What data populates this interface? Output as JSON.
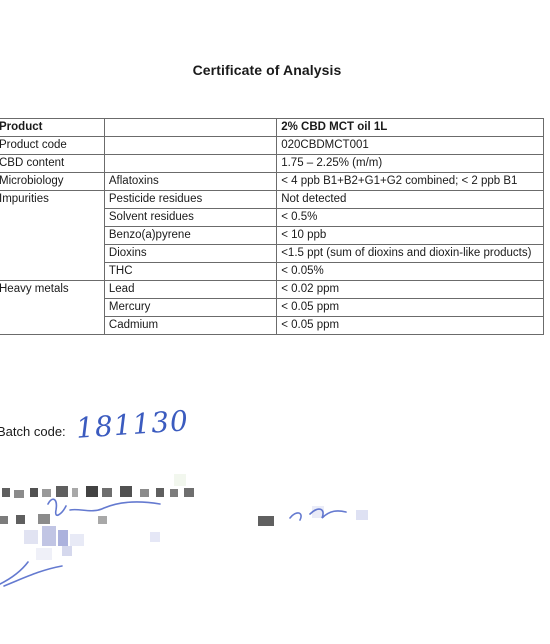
{
  "document": {
    "title": "Certificate of Analysis"
  },
  "table": {
    "rows": [
      {
        "c1": "Product",
        "c2": "",
        "c3": "2% CBD MCT oil 1L"
      },
      {
        "c1": "Product code",
        "c2": "",
        "c3": "020CBDMCT001"
      },
      {
        "c1": "CBD content",
        "c2": "",
        "c3": "1.75 – 2.25% (m/m)"
      },
      {
        "c1": "Microbiology",
        "c2": "Aflatoxins",
        "c3": "< 4 ppb B1+B2+G1+G2 combined; < 2 ppb B1"
      },
      {
        "c1": "Impurities",
        "c2": "Pesticide residues",
        "c3": "Not detected"
      },
      {
        "c1": "",
        "c2": "Solvent residues",
        "c3": "< 0.5%"
      },
      {
        "c1": "",
        "c2": "Benzo(a)pyrene",
        "c3": "< 10 ppb"
      },
      {
        "c1": "",
        "c2": "Dioxins",
        "c3": "<1.5 ppt (sum of dioxins and dioxin-like products)"
      },
      {
        "c1": "",
        "c2": "THC",
        "c3": "< 0.05%"
      },
      {
        "c1": "Heavy metals",
        "c2": "Lead",
        "c3": "< 0.02 ppm"
      },
      {
        "c1": "",
        "c2": "Mercury",
        "c3": "< 0.05 ppm"
      },
      {
        "c1": "",
        "c2": "Cadmium",
        "c3": "< 0.05 ppm"
      }
    ]
  },
  "batch": {
    "label": "Batch code:",
    "value": "181130"
  }
}
